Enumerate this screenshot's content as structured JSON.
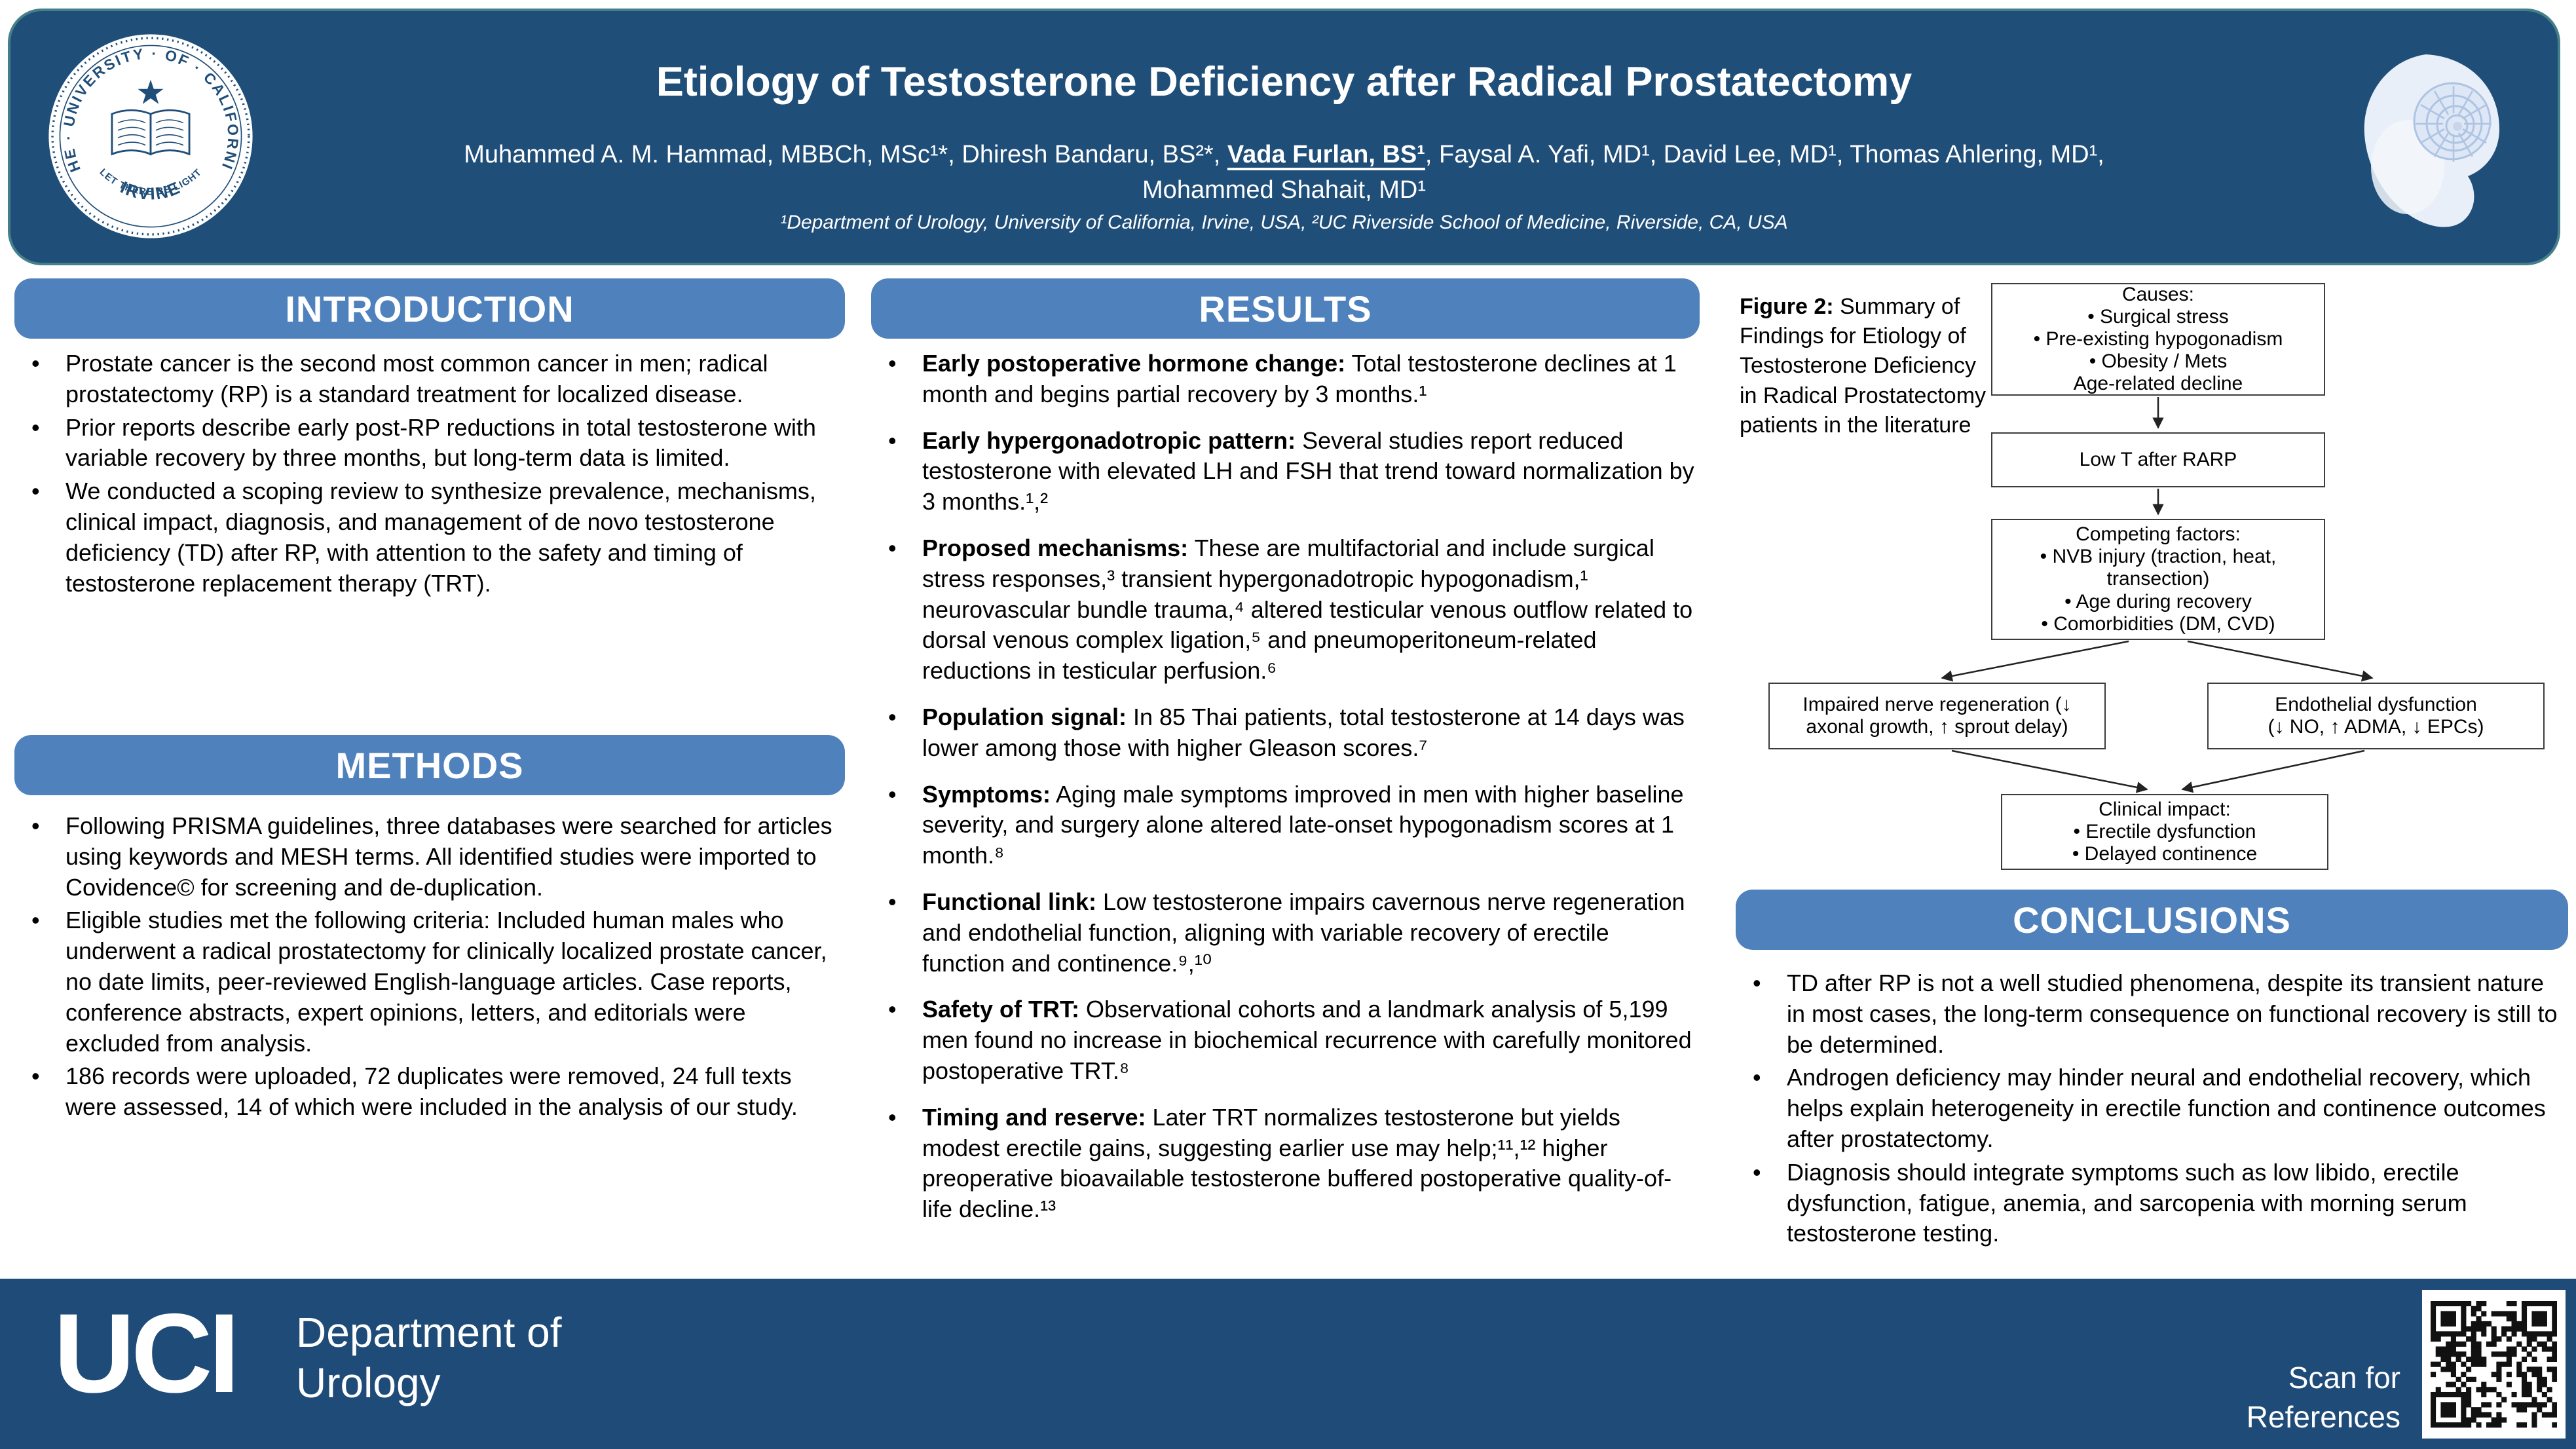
{
  "header": {
    "title": "Etiology of Testosterone Deficiency after Radical Prostatectomy",
    "authors_line1_pre": "Muhammed A. M. Hammad, MBBCh, MSc¹*, Dhiresh Bandaru, BS²*, ",
    "authors_highlight": "Vada Furlan, BS¹",
    "authors_line1_post": ", Faysal A. Yafi, MD¹, David Lee, MD¹, Thomas Ahlering, MD¹,",
    "authors_line2": "Mohammed Shahait, MD¹",
    "affiliation": "¹Department of Urology, University of California, Irvine, USA, ²UC Riverside School of Medicine, Riverside, CA, USA",
    "seal": {
      "ring_text": "THE · UNIVERSITY · OF · CALIFORNIA",
      "motto": "LET THERE BE LIGHT",
      "city": "IRVINE"
    }
  },
  "intro": {
    "heading": "INTRODUCTION",
    "bullets": [
      "Prostate cancer is the second most common cancer in men; radical prostatectomy (RP) is a standard treatment for localized disease.",
      "Prior reports describe early post-RP reductions in total testosterone with variable recovery by three months, but long-term data is limited.",
      "We conducted a scoping review to synthesize prevalence, mechanisms, clinical impact, diagnosis, and management of de novo testosterone deficiency (TD) after RP, with attention to the safety and timing of testosterone replacement therapy (TRT)."
    ]
  },
  "methods": {
    "heading": "METHODS",
    "bullets": [
      "Following PRISMA guidelines, three databases were searched for articles using keywords and MESH terms. All identified studies were imported to Covidence© for screening and de-duplication.",
      "Eligible studies met the following criteria: Included human males who underwent a radical prostatectomy for clinically localized prostate cancer, no date limits, peer-reviewed English-language articles. Case reports, conference abstracts, expert opinions, letters, and editorials were excluded from analysis.",
      "186 records were uploaded, 72 duplicates were removed, 24 full texts were assessed, 14 of which were included in the analysis of our study."
    ]
  },
  "results": {
    "heading": "RESULTS",
    "bullets": [
      {
        "lead": "Early postoperative hormone change:",
        "rest": " Total testosterone declines at 1 month and begins partial recovery by 3 months.¹"
      },
      {
        "lead": "Early hypergonadotropic pattern:",
        "rest": " Several studies report reduced testosterone with elevated LH and FSH that trend toward normalization by 3 months.¹,²"
      },
      {
        "lead": "Proposed mechanisms:",
        "rest": " These are multifactorial and include surgical stress responses,³ transient hypergonadotropic hypogonadism,¹ neurovascular bundle trauma,⁴ altered testicular venous outflow related to dorsal venous complex ligation,⁵ and pneumoperitoneum-related reductions in testicular perfusion.⁶"
      },
      {
        "lead": "Population signal:",
        "rest": " In 85 Thai patients, total testosterone at 14 days was lower among those with higher Gleason scores.⁷"
      },
      {
        "lead": "Symptoms:",
        "rest": " Aging male symptoms improved in men with higher baseline severity, and surgery alone altered late-onset hypogonadism scores at 1 month.⁸"
      },
      {
        "lead": "Functional link:",
        "rest": " Low testosterone impairs cavernous nerve regeneration and endothelial function, aligning with variable recovery of erectile function and continence.⁹,¹⁰"
      },
      {
        "lead": "Safety of TRT:",
        "rest": " Observational cohorts and a landmark analysis of 5,199 men found no increase in biochemical recurrence with carefully monitored postoperative TRT.⁸"
      },
      {
        "lead": "Timing and reserve:",
        "rest": " Later TRT normalizes testosterone but yields modest erectile gains, suggesting earlier use may help;¹¹,¹² higher preoperative bioavailable testosterone buffered postoperative quality-of-life decline.¹³"
      }
    ]
  },
  "figure": {
    "caption_bold": "Figure 2:",
    "caption_rest": " Summary of Findings for Etiology of Testosterone Deficiency in Radical Prostatectomy patients in the literature",
    "nodes": {
      "causes": "Causes:\n• Surgical stress\n• Pre-existing hypogonadism\n• Obesity / Mets\nAge-related decline",
      "low_t": "Low T after RARP",
      "competing": "Competing factors:\n• NVB injury (traction, heat,\ntransection)\n• Age during recovery\n• Comorbidities (DM, CVD)",
      "nerve": "Impaired nerve regeneration (↓\naxonal growth, ↑ sprout delay)",
      "endothelial": "Endothelial dysfunction\n(↓ NO, ↑ ADMA, ↓ EPCs)",
      "clinical": "Clinical impact:\n• Erectile dysfunction\n• Delayed continence"
    }
  },
  "conclusions": {
    "heading": "CONCLUSIONS",
    "bullets": [
      "TD after RP is not a well studied phenomena, despite its transient nature in most cases, the long-term consequence on functional recovery is still to be determined.",
      "Androgen deficiency may hinder neural and endothelial recovery, which helps explain heterogeneity in erectile function and continence outcomes after prostatectomy.",
      "Diagnosis should integrate symptoms such as low libido, erectile dysfunction, fatigue, anemia, and sarcopenia with morning serum testosterone testing."
    ]
  },
  "footer": {
    "wordmark": "UCI",
    "department": "Department of\nUrology",
    "scan": "Scan for\nReferences"
  },
  "colors": {
    "header_blue": "#1F4E79",
    "footer_blue": "#1F4B78",
    "section_bar_blue": "#4F81BD",
    "teal_border": "#45808A",
    "text_black": "#000000"
  }
}
